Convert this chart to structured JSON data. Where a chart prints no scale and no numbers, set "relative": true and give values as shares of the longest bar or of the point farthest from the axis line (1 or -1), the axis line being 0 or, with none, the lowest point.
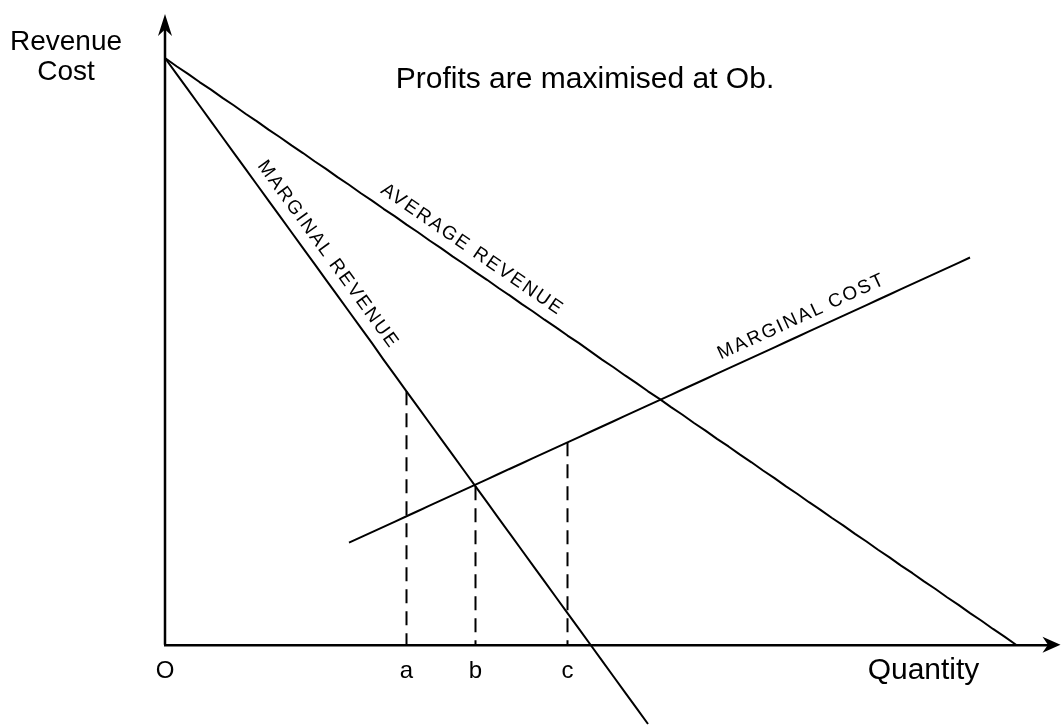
{
  "chart_data": {
    "type": "line",
    "relative": true,
    "ylabel": "Revenue\nCost",
    "xlabel": "Quantity",
    "marker": "none",
    "annotations": [
      "Profits are maximised at Ob."
    ],
    "categories": [
      "O",
      null,
      null,
      null,
      null,
      null,
      null,
      null,
      null,
      null,
      null,
      null,
      null,
      null,
      null,
      null,
      null,
      null,
      null,
      null,
      null,
      "a",
      null,
      null,
      null,
      null,
      null,
      "b",
      null,
      null,
      null,
      null,
      null,
      null,
      null,
      "c",
      null,
      null,
      null,
      null,
      null,
      null,
      null,
      null,
      null,
      null,
      null,
      null,
      null,
      null,
      null,
      null,
      null,
      null,
      null,
      null,
      null,
      null,
      null,
      null,
      null,
      null,
      null,
      null,
      null,
      null,
      null,
      null,
      null,
      null,
      null,
      null,
      null,
      null,
      null,
      null,
      null,
      null
    ],
    "series": [
      {
        "name": "AVERAGE REVENUE",
        "color": "#000000",
        "values": [
          1,
          0.986,
          0.973,
          0.959,
          0.946,
          0.932,
          0.919,
          0.905,
          0.892,
          0.878,
          0.865,
          0.851,
          0.838,
          0.824,
          0.811,
          0.797,
          0.784,
          0.77,
          0.757,
          0.743,
          0.73,
          0.716,
          0.703,
          0.689,
          0.676,
          0.662,
          0.649,
          0.635,
          0.622,
          0.608,
          0.595,
          0.581,
          0.568,
          0.554,
          0.541,
          0.527,
          0.514,
          0.5,
          0.486,
          0.473,
          0.459,
          0.446,
          0.432,
          0.419,
          0.405,
          0.392,
          0.378,
          0.365,
          0.351,
          0.338,
          0.324,
          0.311,
          0.297,
          0.284,
          0.27,
          0.257,
          0.243,
          0.23,
          0.216,
          0.203,
          0.189,
          0.176,
          0.162,
          0.149,
          0.135,
          0.122,
          0.108,
          0.095,
          0.081,
          0.068,
          0.054,
          0.041,
          0.027,
          0.014,
          0,
          null,
          null,
          null
        ]
      },
      {
        "name": "MARGINAL REVENUE",
        "color": "#000000",
        "values": [
          1,
          0.973,
          0.946,
          0.919,
          0.892,
          0.865,
          0.838,
          0.811,
          0.784,
          0.757,
          0.73,
          0.703,
          0.676,
          0.649,
          0.622,
          0.595,
          0.568,
          0.541,
          0.514,
          0.486,
          0.459,
          0.432,
          0.405,
          0.378,
          0.351,
          0.324,
          0.297,
          0.27,
          0.243,
          0.216,
          0.189,
          0.162,
          0.135,
          0.108,
          0.081,
          0.054,
          0.027,
          0,
          -0.027,
          -0.054,
          -0.081,
          -0.108,
          -0.135,
          null,
          null,
          null,
          null,
          null,
          null,
          null,
          null,
          null,
          null,
          null,
          null,
          null,
          null,
          null,
          null,
          null,
          null,
          null,
          null,
          null,
          null,
          null,
          null,
          null,
          null,
          null,
          null,
          null,
          null,
          null,
          null,
          null,
          null,
          null
        ]
      },
      {
        "name": "MARGINAL COST",
        "color": "#000000",
        "values": [
          null,
          null,
          null,
          null,
          null,
          null,
          null,
          null,
          null,
          null,
          null,
          null,
          null,
          null,
          null,
          null,
          0.174,
          0.183,
          0.192,
          0.201,
          0.21,
          0.219,
          0.228,
          0.237,
          0.246,
          0.255,
          0.264,
          0.273,
          0.282,
          0.291,
          0.3,
          0.309,
          0.318,
          0.327,
          0.336,
          0.345,
          0.354,
          0.363,
          0.372,
          0.381,
          0.39,
          0.399,
          0.408,
          0.417,
          0.426,
          0.435,
          0.444,
          0.453,
          0.462,
          0.471,
          0.48,
          0.489,
          0.498,
          0.507,
          0.516,
          0.525,
          0.534,
          0.543,
          0.552,
          0.561,
          0.57,
          0.579,
          0.588,
          0.597,
          0.606,
          0.615,
          0.624,
          0.633,
          0.642,
          0.651,
          0.66,
          null,
          null,
          null,
          null,
          null,
          null,
          null
        ]
      },
      {
        "color": "#000000",
        "line_style": "dashed",
        "x": [
          "a",
          "a"
        ],
        "values": [
          0.432,
          0
        ]
      },
      {
        "color": "#000000",
        "line_style": "dashed",
        "x": [
          "b",
          "b"
        ],
        "values": [
          0.27,
          0
        ]
      },
      {
        "color": "#000000",
        "line_style": "dashed",
        "x": [
          "c",
          "c"
        ],
        "values": [
          0.345,
          0
        ]
      }
    ]
  }
}
